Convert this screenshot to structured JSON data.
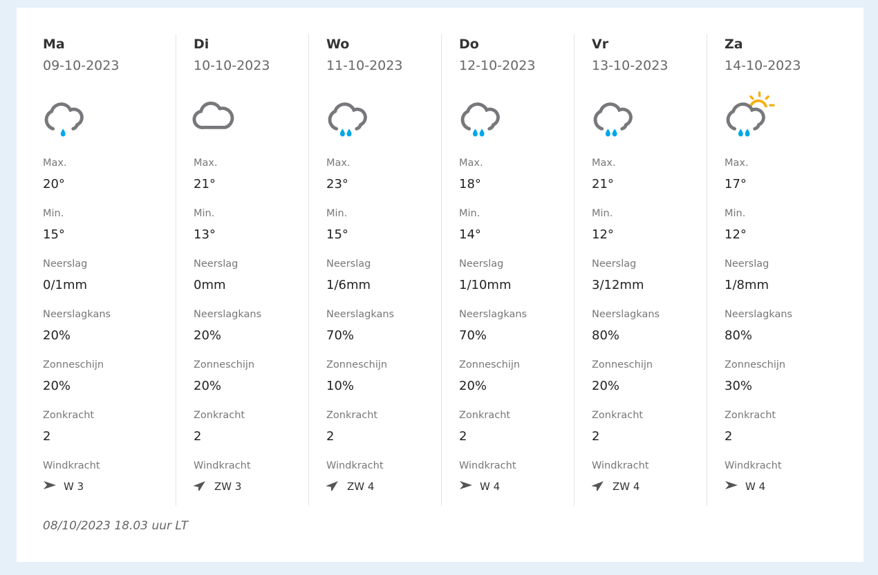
{
  "days": [
    {
      "day": "Ma",
      "date": "09-10-2023",
      "icon": "cloud-rain-light-icon",
      "max": "20°",
      "min": "15°",
      "neerslag": "0/1mm",
      "kans": "20%",
      "zon": "20%",
      "zonkracht": "2",
      "wind_dir": "W",
      "wind": "W 3"
    },
    {
      "day": "Di",
      "date": "10-10-2023",
      "icon": "cloud-icon",
      "max": "21°",
      "min": "13°",
      "neerslag": "0mm",
      "kans": "20%",
      "zon": "20%",
      "zonkracht": "2",
      "wind_dir": "ZW",
      "wind": "ZW 3"
    },
    {
      "day": "Wo",
      "date": "11-10-2023",
      "icon": "cloud-rain-icon",
      "max": "23°",
      "min": "15°",
      "neerslag": "1/6mm",
      "kans": "70%",
      "zon": "10%",
      "zonkracht": "2",
      "wind_dir": "ZW",
      "wind": "ZW 4"
    },
    {
      "day": "Do",
      "date": "12-10-2023",
      "icon": "cloud-rain-icon",
      "max": "18°",
      "min": "14°",
      "neerslag": "1/10mm",
      "kans": "70%",
      "zon": "20%",
      "zonkracht": "2",
      "wind_dir": "W",
      "wind": "W 4"
    },
    {
      "day": "Vr",
      "date": "13-10-2023",
      "icon": "cloud-rain-icon",
      "max": "21°",
      "min": "12°",
      "neerslag": "3/12mm",
      "kans": "80%",
      "zon": "20%",
      "zonkracht": "2",
      "wind_dir": "ZW",
      "wind": "ZW 4"
    },
    {
      "day": "Za",
      "date": "14-10-2023",
      "icon": "sun-cloud-rain-icon",
      "max": "17°",
      "min": "12°",
      "neerslag": "1/8mm",
      "kans": "80%",
      "zon": "30%",
      "zonkracht": "2",
      "wind_dir": "W",
      "wind": "W 4"
    }
  ],
  "labels": {
    "max": "Max.",
    "min": "Min.",
    "neerslag": "Neerslag",
    "kans": "Neerslagkans",
    "zon": "Zonneschijn",
    "zonkracht": "Zonkracht",
    "wind": "Windkracht"
  },
  "footer": "08/10/2023 18.03 uur LT",
  "colors": {
    "cloud": "#77787b",
    "rain": "#00a8e8",
    "sun": "#f5b013",
    "background": "#e5f0f9"
  }
}
